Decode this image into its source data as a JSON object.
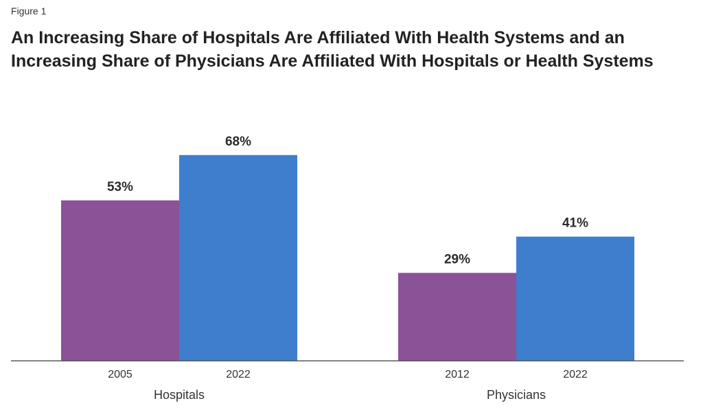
{
  "figure_label": "Figure 1",
  "title": "An Increasing Share of Hospitals Are Affiliated With Health Systems and an Increasing Share of Physicians Are Affiliated With Hospitals or Health Systems",
  "colors": {
    "bar_first": "#8a5297",
    "bar_second": "#3e7ecd",
    "axis": "#555555"
  },
  "chart_data": {
    "type": "bar",
    "title": "An Increasing Share of Hospitals Are Affiliated With Health Systems and an Increasing Share of Physicians Are Affiliated With Hospitals or Health Systems",
    "unit": "%",
    "ylim": [
      0,
      100
    ],
    "grid": false,
    "legend": "none",
    "groups": [
      {
        "name": "Hospitals",
        "bars": [
          {
            "year": "2005",
            "value": 53,
            "label": "53%"
          },
          {
            "year": "2022",
            "value": 68,
            "label": "68%"
          }
        ]
      },
      {
        "name": "Physicians",
        "bars": [
          {
            "year": "2012",
            "value": 29,
            "label": "29%"
          },
          {
            "year": "2022",
            "value": 41,
            "label": "41%"
          }
        ]
      }
    ]
  }
}
